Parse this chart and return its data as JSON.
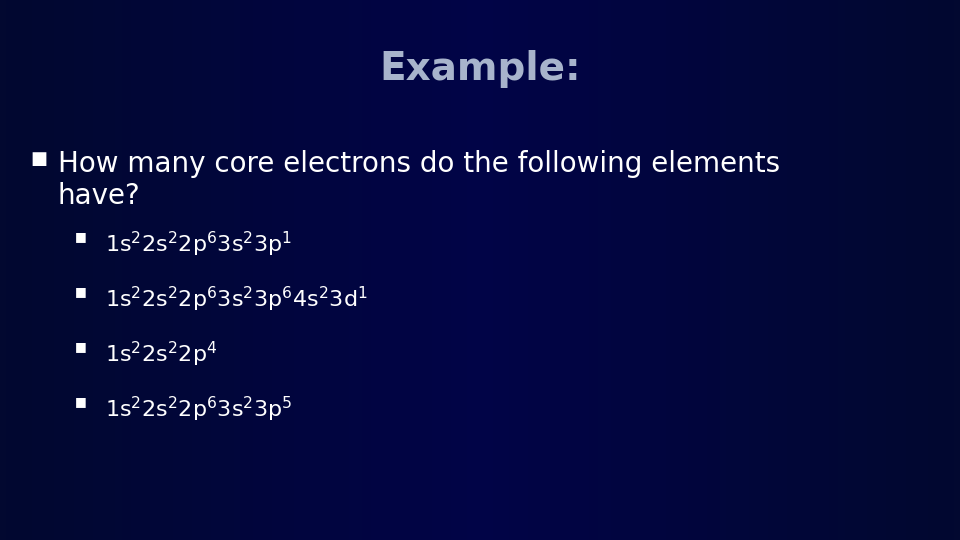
{
  "title": "Example:",
  "title_color": "#a8b4cc",
  "title_fontsize": 28,
  "background_color_top": "#000060",
  "background_color_bottom": "#020830",
  "bullet_color": "#ffffff",
  "sub_bullet_color": "#ffffff",
  "main_bullet_fontsize": 20,
  "sub_bullet_fontsize": 16,
  "sub_configs": [
    "1s$^2$2s$^2$2p$^6$3s$^2$3p$^1$",
    "1s$^2$2s$^2$2p$^6$3s$^2$3p$^6$4s$^2$3d$^1$",
    "1s$^2$2s$^2$2p$^4$",
    "1s$^2$2s$^2$2p$^6$3s$^2$3p$^5$"
  ]
}
